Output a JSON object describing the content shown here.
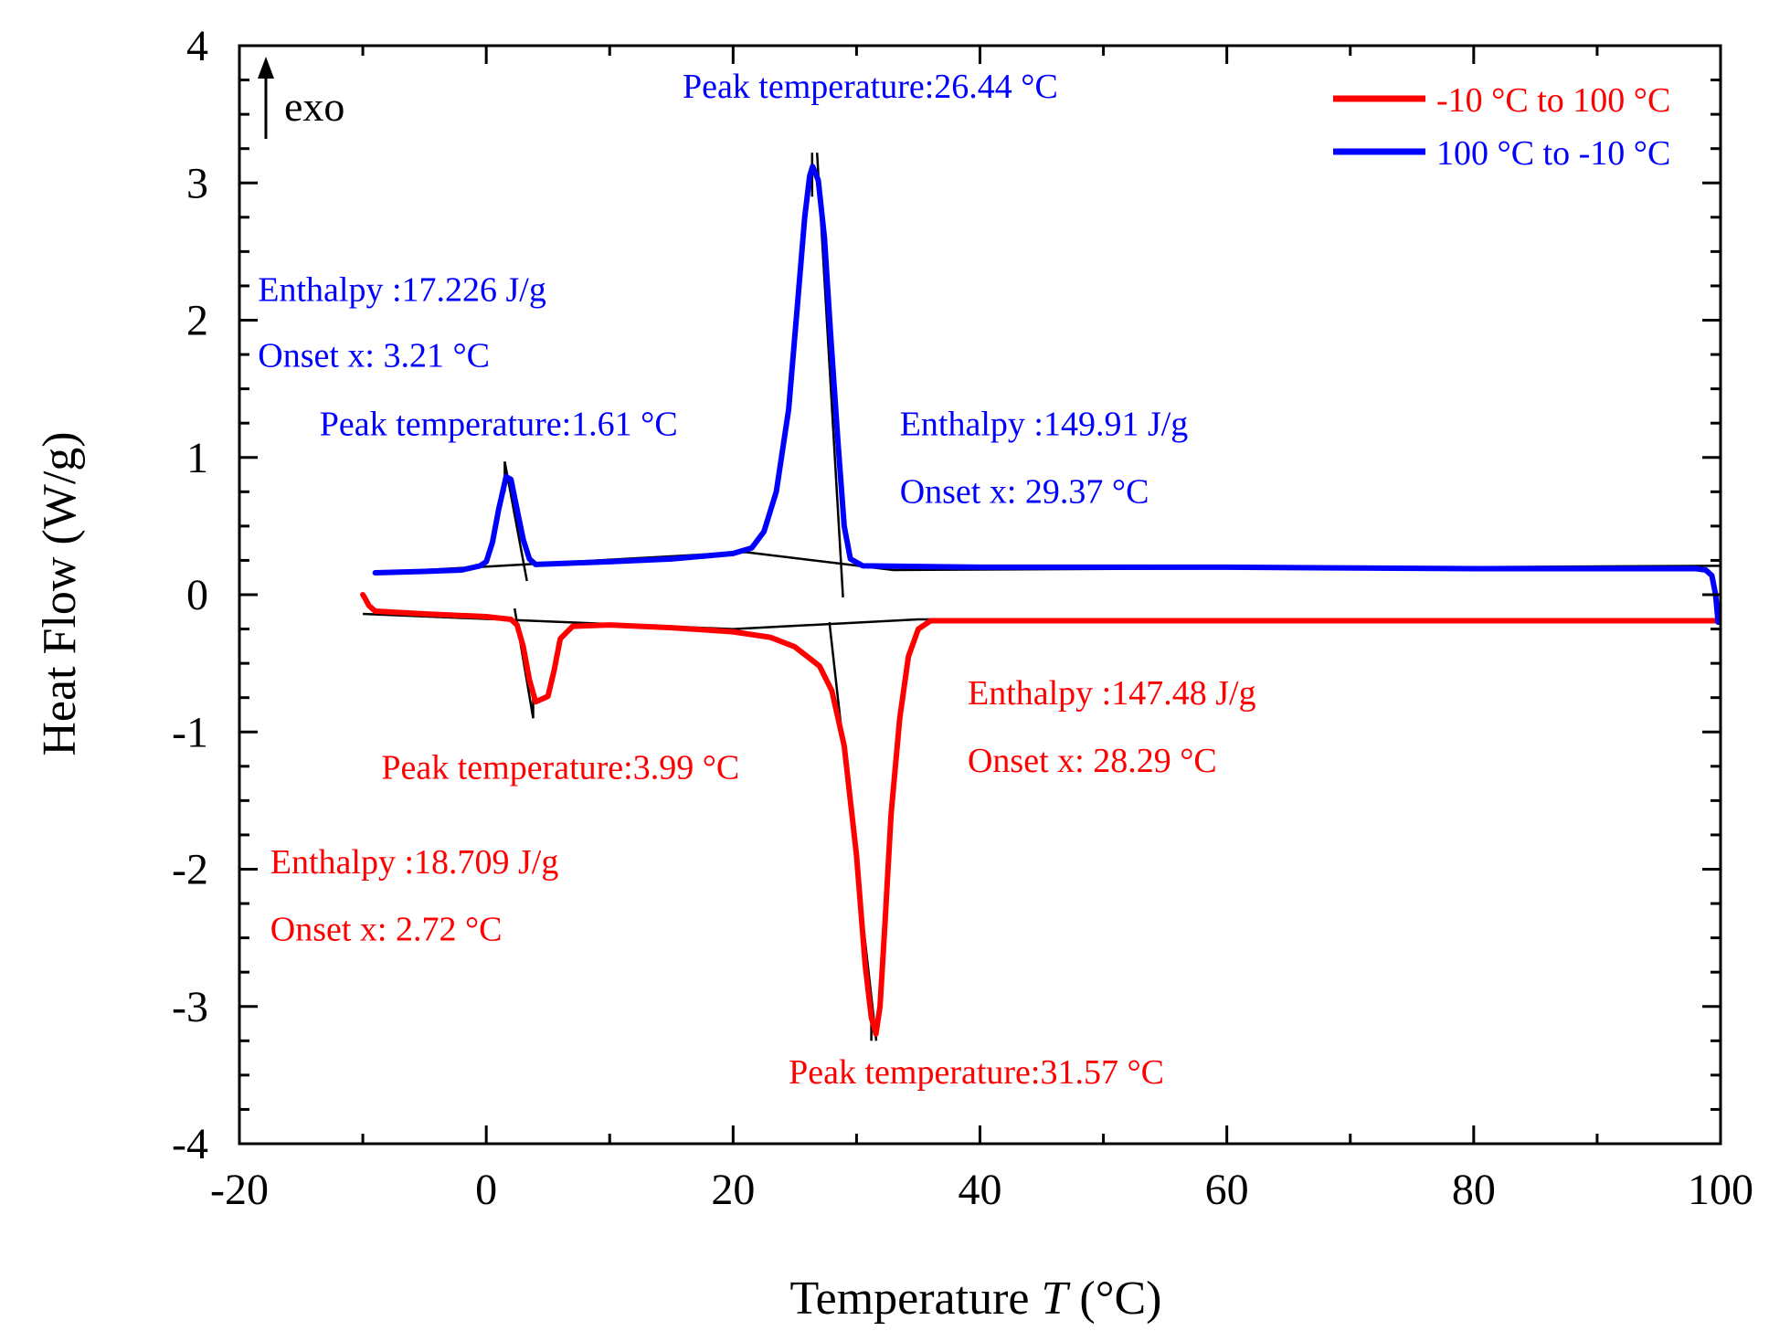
{
  "chart_data": {
    "type": "line",
    "title": "",
    "xlabel_prefix": "Temperature ",
    "xlabel_var": "T",
    "xlabel_unit": " (°C)",
    "ylabel": "Heat Flow  (W/g)",
    "xlim": [
      -20,
      100
    ],
    "ylim": [
      -4,
      4
    ],
    "x_ticks": [
      -20,
      0,
      20,
      40,
      60,
      80,
      100
    ],
    "y_ticks": [
      -4,
      -3,
      -2,
      -1,
      0,
      1,
      2,
      3,
      4
    ],
    "x_tick_labels": [
      "-20",
      "0",
      "20",
      "40",
      "60",
      "80",
      "100"
    ],
    "y_tick_labels": [
      "-4",
      "-3",
      "-2",
      "-1",
      "0",
      "1",
      "2",
      "3",
      "4"
    ],
    "exo_label": "exo",
    "legend_position": "top-right",
    "series": [
      {
        "name": "-10  °C to 100  °C",
        "color": "#ff0000",
        "points": [
          [
            -10,
            0.0
          ],
          [
            -9.8,
            -0.03
          ],
          [
            -9.5,
            -0.08
          ],
          [
            -9,
            -0.12
          ],
          [
            -5,
            -0.14
          ],
          [
            0,
            -0.16
          ],
          [
            2,
            -0.18
          ],
          [
            2.5,
            -0.22
          ],
          [
            3,
            -0.38
          ],
          [
            3.5,
            -0.62
          ],
          [
            4.0,
            -0.78
          ],
          [
            4.5,
            -0.76
          ],
          [
            5.0,
            -0.74
          ],
          [
            5.5,
            -0.55
          ],
          [
            6,
            -0.32
          ],
          [
            7,
            -0.23
          ],
          [
            10,
            -0.22
          ],
          [
            15,
            -0.24
          ],
          [
            20,
            -0.27
          ],
          [
            23,
            -0.31
          ],
          [
            25,
            -0.38
          ],
          [
            27,
            -0.52
          ],
          [
            28,
            -0.7
          ],
          [
            29,
            -1.1
          ],
          [
            30,
            -1.9
          ],
          [
            30.7,
            -2.7
          ],
          [
            31.2,
            -3.08
          ],
          [
            31.57,
            -3.2
          ],
          [
            31.9,
            -3.0
          ],
          [
            32.3,
            -2.4
          ],
          [
            32.8,
            -1.6
          ],
          [
            33.5,
            -0.9
          ],
          [
            34.2,
            -0.45
          ],
          [
            35,
            -0.25
          ],
          [
            36,
            -0.19
          ],
          [
            40,
            -0.19
          ],
          [
            60,
            -0.19
          ],
          [
            80,
            -0.19
          ],
          [
            99.8,
            -0.19
          ]
        ]
      },
      {
        "name": "100  °C to -10  °C",
        "color": "#0000ff",
        "points": [
          [
            -9,
            0.16
          ],
          [
            -5,
            0.17
          ],
          [
            -2,
            0.18
          ],
          [
            -0.5,
            0.21
          ],
          [
            0,
            0.24
          ],
          [
            0.5,
            0.38
          ],
          [
            1.0,
            0.62
          ],
          [
            1.61,
            0.86
          ],
          [
            2.0,
            0.84
          ],
          [
            2.5,
            0.62
          ],
          [
            3.0,
            0.4
          ],
          [
            3.5,
            0.26
          ],
          [
            4,
            0.22
          ],
          [
            10,
            0.24
          ],
          [
            15,
            0.26
          ],
          [
            20,
            0.3
          ],
          [
            21.5,
            0.34
          ],
          [
            22.5,
            0.46
          ],
          [
            23.5,
            0.75
          ],
          [
            24.5,
            1.35
          ],
          [
            25.2,
            2.1
          ],
          [
            25.8,
            2.75
          ],
          [
            26.2,
            3.05
          ],
          [
            26.44,
            3.12
          ],
          [
            26.9,
            3.02
          ],
          [
            27.4,
            2.6
          ],
          [
            27.9,
            1.9
          ],
          [
            28.5,
            1.1
          ],
          [
            29.0,
            0.5
          ],
          [
            29.5,
            0.26
          ],
          [
            30.5,
            0.21
          ],
          [
            40,
            0.2
          ],
          [
            60,
            0.2
          ],
          [
            80,
            0.19
          ],
          [
            98,
            0.19
          ],
          [
            98.8,
            0.18
          ],
          [
            99.3,
            0.14
          ],
          [
            99.6,
            0.0
          ],
          [
            99.8,
            -0.2
          ]
        ]
      }
    ],
    "baselines": [
      [
        [
          -10,
          -0.14
        ],
        [
          20,
          -0.25
        ],
        [
          35,
          -0.18
        ],
        [
          100,
          -0.19
        ]
      ],
      [
        [
          -9,
          0.16
        ],
        [
          21,
          0.31
        ],
        [
          33,
          0.18
        ],
        [
          100,
          0.21
        ]
      ]
    ],
    "tangents": [
      [
        [
          1.5,
          0.97
        ],
        [
          3.3,
          0.1
        ]
      ],
      [
        [
          2.3,
          -0.1
        ],
        [
          3.8,
          -0.9
        ]
      ],
      [
        [
          26.8,
          3.22
        ],
        [
          28.9,
          -0.02
        ]
      ],
      [
        [
          27.8,
          -0.2
        ],
        [
          31.6,
          -3.25
        ]
      ],
      [
        [
          26.4,
          3.22
        ],
        [
          26.4,
          2.9
        ]
      ],
      [
        [
          1.5,
          0.97
        ],
        [
          1.5,
          0.75
        ]
      ],
      [
        [
          3.8,
          -0.72
        ],
        [
          3.8,
          -0.9
        ]
      ],
      [
        [
          31.2,
          -3.02
        ],
        [
          31.2,
          -3.25
        ]
      ]
    ],
    "annotations": [
      {
        "text": "Peak temperature:26.44 °C",
        "x": 15.9,
        "y": 3.62,
        "color": "#0000ff"
      },
      {
        "text": "Enthalpy  :17.226 J/g",
        "x": -18.5,
        "y": 2.14,
        "color": "#0000ff"
      },
      {
        "text": "Onset x: 3.21 °C",
        "x": -18.5,
        "y": 1.66,
        "color": "#0000ff"
      },
      {
        "text": "Peak temperature:1.61 °C",
        "x": -13.5,
        "y": 1.16,
        "color": "#0000ff"
      },
      {
        "text": "Enthalpy  :149.91 J/g",
        "x": 33.5,
        "y": 1.16,
        "color": "#0000ff"
      },
      {
        "text": "Onset x: 29.37 °C",
        "x": 33.5,
        "y": 0.67,
        "color": "#0000ff"
      },
      {
        "text": "Enthalpy  :147.48 J/g",
        "x": 39.0,
        "y": -0.8,
        "color": "#ff0000"
      },
      {
        "text": "Onset x: 28.29 °C",
        "x": 39.0,
        "y": -1.29,
        "color": "#ff0000"
      },
      {
        "text": "Peak temperature:3.99 °C",
        "x": -8.5,
        "y": -1.34,
        "color": "#ff0000"
      },
      {
        "text": "Enthalpy  :18.709 J/g",
        "x": -17.5,
        "y": -2.03,
        "color": "#ff0000"
      },
      {
        "text": "Onset x: 2.72 °C",
        "x": -17.5,
        "y": -2.52,
        "color": "#ff0000"
      },
      {
        "text": "Peak temperature:31.57 °C",
        "x": 24.5,
        "y": -3.56,
        "color": "#ff0000"
      }
    ]
  }
}
